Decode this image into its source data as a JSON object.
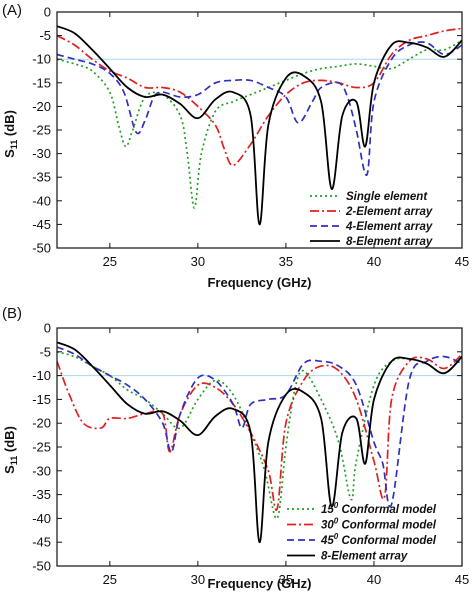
{
  "chart_data": [
    {
      "type": "line",
      "panel_label": "(A)",
      "xlabel": "Frequency (GHz)",
      "ylabel": "S11 (dB)",
      "xlim": [
        22,
        45
      ],
      "ylim": [
        -50,
        0
      ],
      "x_ticks": [
        25,
        30,
        35,
        40,
        45
      ],
      "y_ticks": [
        0,
        -5,
        -10,
        -15,
        -20,
        -25,
        -30,
        -35,
        -40,
        -45,
        -50
      ],
      "reference_line": -10,
      "grid": false,
      "legend_position": "bottom-right",
      "series": [
        {
          "name": "Single element",
          "color": "#22a022",
          "dash": "dotted",
          "x": [
            22,
            23,
            24,
            25,
            25.5,
            25.9,
            26.3,
            27,
            28,
            29,
            29.4,
            29.8,
            30.2,
            31,
            32,
            33,
            34,
            35,
            36,
            37,
            38,
            39,
            40,
            41,
            42,
            43,
            44,
            45
          ],
          "y": [
            -10,
            -11,
            -12.5,
            -17,
            -24,
            -28.5,
            -25,
            -18,
            -17.5,
            -22,
            -30,
            -41.5,
            -30,
            -21,
            -19,
            -17.5,
            -16,
            -14.5,
            -13,
            -12,
            -11.5,
            -11,
            -11.5,
            -12,
            -10,
            -8,
            -8,
            -6
          ]
        },
        {
          "name": "2-Element array",
          "color": "#e02020",
          "dash": "dashdot",
          "x": [
            22,
            23,
            24,
            25,
            26,
            27,
            28,
            29,
            30,
            31,
            31.5,
            32,
            33,
            34,
            35,
            36,
            37,
            38,
            39,
            40,
            41,
            42,
            43,
            44,
            45
          ],
          "y": [
            -5,
            -7,
            -10,
            -12.5,
            -14,
            -16,
            -16,
            -17,
            -20,
            -24,
            -29,
            -32.5,
            -28,
            -22,
            -17.5,
            -15,
            -14.5,
            -15,
            -16,
            -15,
            -9,
            -6,
            -5,
            -4,
            -3.5
          ]
        },
        {
          "name": "4-Element array",
          "color": "#3030c0",
          "dash": "dashed",
          "x": [
            22,
            23,
            24,
            25,
            25.8,
            26.5,
            27,
            27.5,
            28,
            29,
            30,
            31,
            32,
            33,
            34,
            35,
            35.7,
            36.5,
            37,
            38,
            38.5,
            39,
            39.6,
            40,
            41,
            42,
            43,
            44,
            45
          ],
          "y": [
            -9,
            -10,
            -11,
            -13,
            -17,
            -25.5,
            -23,
            -18,
            -17,
            -18,
            -17.5,
            -15,
            -14.5,
            -14.5,
            -16,
            -18,
            -23.5,
            -19,
            -16,
            -15,
            -18,
            -25,
            -34.5,
            -19,
            -10,
            -7,
            -6.5,
            -9,
            -7
          ]
        },
        {
          "name": "8-Element array",
          "color": "#000000",
          "dash": "solid",
          "x": [
            22,
            23,
            24,
            25,
            26,
            27,
            28,
            29,
            30,
            31,
            32,
            33,
            33.5,
            34,
            35,
            36,
            37,
            37.6,
            38.2,
            39,
            39.5,
            40,
            41,
            42,
            43,
            44,
            45
          ],
          "y": [
            -3,
            -4.5,
            -8,
            -12,
            -16,
            -18,
            -17.5,
            -19.5,
            -22.5,
            -18.5,
            -17,
            -22,
            -45,
            -24,
            -14,
            -13.5,
            -19,
            -37.5,
            -22,
            -19,
            -28.5,
            -15,
            -7,
            -6.5,
            -7.5,
            -9.5,
            -6
          ]
        }
      ]
    },
    {
      "type": "line",
      "panel_label": "(B)",
      "xlabel": "Frequency (GHz)",
      "ylabel": "S11 (dB)",
      "xlim": [
        22,
        45
      ],
      "ylim": [
        -50,
        0
      ],
      "x_ticks": [
        25,
        30,
        35,
        40,
        45
      ],
      "y_ticks": [
        0,
        -5,
        -10,
        -15,
        -20,
        -25,
        -30,
        -35,
        -40,
        -45,
        -50
      ],
      "reference_line": -10,
      "grid": false,
      "legend_position": "bottom-right",
      "series": [
        {
          "name": "15",
          "name_sup": "0",
          "name_suffix": " Conformal model",
          "color": "#22a022",
          "dash": "dotted",
          "x": [
            22,
            23,
            24,
            25,
            26,
            27,
            28,
            29,
            30,
            31,
            32,
            33,
            33.8,
            34.5,
            35,
            35.5,
            36,
            37,
            38,
            38.7,
            39,
            40,
            41,
            42,
            43,
            44,
            45
          ],
          "y": [
            -5,
            -6,
            -8,
            -10,
            -13,
            -15,
            -18,
            -21,
            -15,
            -11,
            -14,
            -22,
            -30,
            -40,
            -25,
            -13,
            -9,
            -15,
            -24,
            -36,
            -28,
            -12,
            -7,
            -6.5,
            -7.5,
            -9.5,
            -6
          ]
        },
        {
          "name": "30",
          "name_sup": "0",
          "name_suffix": " Conformal model",
          "color": "#e02020",
          "dash": "dashdot",
          "x": [
            22,
            22.7,
            23.5,
            24.5,
            25,
            26,
            27,
            28,
            28.4,
            29,
            30,
            31,
            32,
            33,
            34,
            34.5,
            35,
            36,
            37,
            38,
            39,
            40,
            40.6,
            41,
            42,
            43,
            44,
            45
          ],
          "y": [
            -7,
            -14,
            -20,
            -21,
            -19,
            -19,
            -18,
            -18,
            -26,
            -18,
            -12,
            -12.5,
            -16,
            -22,
            -30,
            -38,
            -20,
            -11,
            -8,
            -9,
            -15,
            -28,
            -35.5,
            -15,
            -7,
            -6.5,
            -8.5,
            -5.5
          ]
        },
        {
          "name": "45",
          "name_sup": "0",
          "name_suffix": " Conformal model",
          "color": "#3030c0",
          "dash": "dashed",
          "x": [
            22,
            23,
            24,
            25,
            26,
            27,
            28,
            28.5,
            29,
            30,
            31,
            32,
            32.5,
            33,
            34,
            35,
            36,
            37,
            38,
            39,
            40,
            40.5,
            41,
            42,
            43,
            44,
            45
          ],
          "y": [
            -4,
            -5.5,
            -8,
            -10,
            -12,
            -15,
            -20,
            -26,
            -18,
            -10.5,
            -11,
            -16,
            -21,
            -16,
            -15,
            -14,
            -7.5,
            -7,
            -8,
            -12,
            -24,
            -28.5,
            -37,
            -11,
            -7,
            -6,
            -7.5
          ]
        },
        {
          "name": "8-Element array",
          "name_sup": "",
          "name_suffix": "",
          "color": "#000000",
          "dash": "solid",
          "x": [
            22,
            23,
            24,
            25,
            26,
            27,
            28,
            29,
            30,
            31,
            32,
            33,
            33.5,
            34,
            35,
            36,
            37,
            37.6,
            38.2,
            39,
            39.5,
            40,
            41,
            42,
            43,
            44,
            45
          ],
          "y": [
            -3,
            -4.5,
            -8,
            -12,
            -16,
            -18,
            -17.5,
            -19.5,
            -22.5,
            -18.5,
            -17,
            -22,
            -45,
            -24,
            -14,
            -13.5,
            -19,
            -37.5,
            -22,
            -19,
            -28.5,
            -15,
            -7,
            -6.5,
            -7.5,
            -9.5,
            -6
          ]
        }
      ]
    }
  ],
  "styles": {
    "reference_line_color": "#a8d8f0",
    "axis_color": "#111111"
  }
}
